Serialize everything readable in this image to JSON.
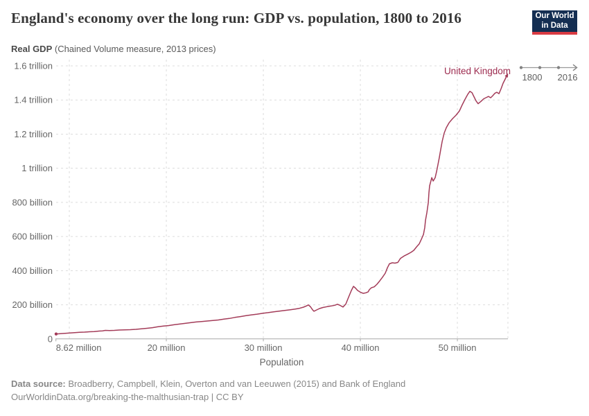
{
  "header": {
    "title": "England's economy over the long run: GDP vs. population, 1800 to 2016",
    "logo": {
      "line1": "Our World",
      "line2": "in Data"
    }
  },
  "subtitle": {
    "bold": "Real GDP",
    "rest": " (Chained Volume measure, 2013 prices)"
  },
  "entity_label": "United Kingdom",
  "timeline": {
    "start_year": "1800",
    "end_year": "2016"
  },
  "axis_titles": {
    "x": "Population"
  },
  "footer": {
    "source_label": "Data source:",
    "source_text": " Broadberry, Campbell, Klein, Overton and van Leeuwen (2015) and Bank of England",
    "link_line": "OurWorldinData.org/breaking-the-malthusian-trap | CC BY"
  },
  "colors": {
    "line": "#a33b58",
    "entity_text": "#9c2a4e",
    "grid": "#dcdcdc",
    "axis": "#a8a8a8",
    "tick_text": "#666666",
    "logo_bg": "#142e52",
    "logo_stripe": "#d93b43"
  },
  "chart_data": {
    "type": "line",
    "subtype": "connected-scatter",
    "title": "England's economy over the long run: GDP vs. population, 1800 to 2016",
    "xlabel": "Population",
    "ylabel": "Real GDP (Chained Volume measure, 2013 prices)",
    "x_unit": "million people",
    "y_unit": "billion GBP (2013 prices)",
    "xlim": [
      8.57,
      55.21
    ],
    "ylim": [
      0,
      1600
    ],
    "grid": true,
    "legend_position": "end-of-line",
    "x_ticks": [
      {
        "value": 8.62,
        "label": "8.62 million",
        "align": "start",
        "gridline": false,
        "tick": true
      },
      {
        "value": 10,
        "label": "",
        "align": "middle",
        "gridline": true,
        "tick": false
      },
      {
        "value": 20,
        "label": "20 million",
        "align": "middle",
        "gridline": true,
        "tick": true
      },
      {
        "value": 30,
        "label": "30 million",
        "align": "middle",
        "gridline": true,
        "tick": true
      },
      {
        "value": 40,
        "label": "40 million",
        "align": "middle",
        "gridline": true,
        "tick": true
      },
      {
        "value": 50,
        "label": "50 million",
        "align": "middle",
        "gridline": true,
        "tick": true
      },
      {
        "value": 55.21,
        "label": "",
        "align": "middle",
        "gridline": true,
        "tick": false
      }
    ],
    "y_ticks": [
      {
        "value": 0,
        "label": "0"
      },
      {
        "value": 200,
        "label": "200 billion"
      },
      {
        "value": 400,
        "label": "400 billion"
      },
      {
        "value": 600,
        "label": "600 billion"
      },
      {
        "value": 800,
        "label": "800 billion"
      },
      {
        "value": 1000,
        "label": "1 trillion"
      },
      {
        "value": 1200,
        "label": "1.2 trillion"
      },
      {
        "value": 1400,
        "label": "1.4 trillion"
      },
      {
        "value": 1600,
        "label": "1.6 trillion"
      }
    ],
    "series": [
      {
        "name": "United Kingdom",
        "year_start": 1800,
        "year_end": 2016,
        "points": [
          [
            8.64,
            29
          ],
          [
            9.07,
            31
          ],
          [
            9.57,
            33
          ],
          [
            10.07,
            35
          ],
          [
            10.57,
            37
          ],
          [
            11.07,
            39
          ],
          [
            11.57,
            40
          ],
          [
            12.07,
            42
          ],
          [
            12.57,
            43
          ],
          [
            13.07,
            46
          ],
          [
            13.43,
            47
          ],
          [
            13.71,
            50
          ],
          [
            14.14,
            49
          ],
          [
            14.64,
            50
          ],
          [
            15.14,
            52
          ],
          [
            15.71,
            53
          ],
          [
            16.29,
            54
          ],
          [
            16.86,
            56
          ],
          [
            17.43,
            59
          ],
          [
            18.0,
            62
          ],
          [
            18.57,
            66
          ],
          [
            19.14,
            71
          ],
          [
            19.71,
            75
          ],
          [
            20.21,
            78
          ],
          [
            20.79,
            83
          ],
          [
            21.36,
            87
          ],
          [
            21.93,
            91
          ],
          [
            22.5,
            95
          ],
          [
            23.07,
            99
          ],
          [
            23.64,
            102
          ],
          [
            24.21,
            105
          ],
          [
            24.79,
            108
          ],
          [
            25.36,
            111
          ],
          [
            25.93,
            116
          ],
          [
            26.5,
            120
          ],
          [
            27.07,
            126
          ],
          [
            27.64,
            131
          ],
          [
            28.21,
            136
          ],
          [
            28.79,
            141
          ],
          [
            29.36,
            145
          ],
          [
            29.93,
            150
          ],
          [
            30.5,
            154
          ],
          [
            31.07,
            159
          ],
          [
            31.64,
            163
          ],
          [
            32.21,
            167
          ],
          [
            32.79,
            171
          ],
          [
            33.29,
            175
          ],
          [
            33.71,
            179
          ],
          [
            34.14,
            186
          ],
          [
            34.43,
            193
          ],
          [
            34.64,
            199
          ],
          [
            34.86,
            188
          ],
          [
            35.07,
            171
          ],
          [
            35.21,
            162
          ],
          [
            35.5,
            170
          ],
          [
            35.79,
            178
          ],
          [
            36.14,
            184
          ],
          [
            36.57,
            189
          ],
          [
            37.0,
            193
          ],
          [
            37.36,
            197
          ],
          [
            37.64,
            203
          ],
          [
            37.93,
            196
          ],
          [
            38.21,
            187
          ],
          [
            38.5,
            204
          ],
          [
            38.79,
            245
          ],
          [
            39.07,
            283
          ],
          [
            39.29,
            308
          ],
          [
            39.5,
            298
          ],
          [
            39.71,
            284
          ],
          [
            40.0,
            274
          ],
          [
            40.29,
            267
          ],
          [
            40.57,
            270
          ],
          [
            40.79,
            275
          ],
          [
            40.93,
            289
          ],
          [
            41.14,
            300
          ],
          [
            41.43,
            305
          ],
          [
            41.71,
            320
          ],
          [
            42.0,
            340
          ],
          [
            42.29,
            362
          ],
          [
            42.57,
            385
          ],
          [
            42.79,
            417
          ],
          [
            43.0,
            440
          ],
          [
            43.29,
            446
          ],
          [
            43.57,
            444
          ],
          [
            43.86,
            448
          ],
          [
            44.14,
            472
          ],
          [
            44.5,
            486
          ],
          [
            44.86,
            496
          ],
          [
            45.21,
            507
          ],
          [
            45.5,
            519
          ],
          [
            45.79,
            539
          ],
          [
            46.07,
            557
          ],
          [
            46.29,
            584
          ],
          [
            46.5,
            612
          ],
          [
            46.64,
            653
          ],
          [
            46.71,
            694
          ],
          [
            46.86,
            742
          ],
          [
            47.0,
            799
          ],
          [
            47.07,
            856
          ],
          [
            47.14,
            897
          ],
          [
            47.29,
            929
          ],
          [
            47.36,
            945
          ],
          [
            47.5,
            925
          ],
          [
            47.71,
            945
          ],
          [
            47.86,
            982
          ],
          [
            48.0,
            1023
          ],
          [
            48.14,
            1063
          ],
          [
            48.29,
            1112
          ],
          [
            48.43,
            1157
          ],
          [
            48.64,
            1206
          ],
          [
            48.86,
            1238
          ],
          [
            49.14,
            1266
          ],
          [
            49.5,
            1291
          ],
          [
            49.86,
            1311
          ],
          [
            50.21,
            1336
          ],
          [
            50.5,
            1372
          ],
          [
            50.79,
            1404
          ],
          [
            51.07,
            1433
          ],
          [
            51.29,
            1451
          ],
          [
            51.5,
            1443
          ],
          [
            51.71,
            1419
          ],
          [
            51.93,
            1394
          ],
          [
            52.14,
            1378
          ],
          [
            52.43,
            1392
          ],
          [
            52.71,
            1407
          ],
          [
            53.0,
            1415
          ],
          [
            53.21,
            1421
          ],
          [
            53.43,
            1413
          ],
          [
            53.64,
            1425
          ],
          [
            53.86,
            1439
          ],
          [
            54.07,
            1445
          ],
          [
            54.29,
            1437
          ],
          [
            54.5,
            1466
          ],
          [
            54.71,
            1498
          ],
          [
            54.93,
            1523
          ],
          [
            55.07,
            1539
          ]
        ]
      }
    ]
  }
}
